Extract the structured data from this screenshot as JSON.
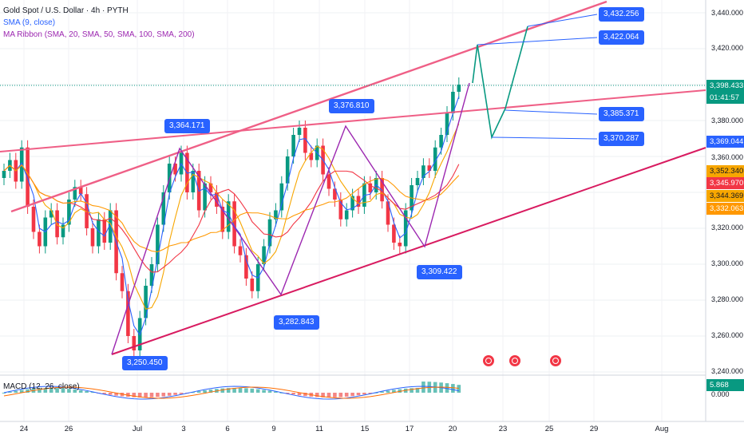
{
  "legend": {
    "title": "Gold Spot / U.S. Dollar · 4h · PYTH",
    "sma": "SMA (9, close)",
    "ribbon": "MA Ribbon (SMA, 20, SMA, 50, SMA, 100, SMA, 200)",
    "macd": "MACD (12, 26, close)"
  },
  "price_axis": {
    "ticks": [
      "3,440.000",
      "3,420.000",
      "3,380.000",
      "3,360.000",
      "3,320.000",
      "3,300.000",
      "3,280.000",
      "3,260.000",
      "3,240.000",
      "0.000"
    ],
    "current_price": "3,398.433",
    "countdown": "01:41:57",
    "labels": [
      {
        "text": "3,369.044",
        "color": "#2962ff"
      },
      {
        "text": "3,352.340",
        "color": "#f7a600"
      },
      {
        "text": "3,345.970",
        "color": "#f23645"
      },
      {
        "text": "3,344.369",
        "color": "#f7a600"
      },
      {
        "text": "3,332.063",
        "color": "#ff9800"
      },
      {
        "text": "5.868",
        "color": "#089981"
      }
    ]
  },
  "annotations": [
    "3,432.256",
    "3,422.064",
    "3,385.371",
    "3,370.287",
    "3,376.810",
    "3,364.171",
    "3,309.422",
    "3,282.843",
    "3,250.450"
  ],
  "time_axis": [
    "24",
    "26",
    "Jul",
    "3",
    "6",
    "9",
    "11",
    "15",
    "17",
    "20",
    "23",
    "25",
    "29",
    "Aug"
  ],
  "chart_data": {
    "type": "candlestick",
    "symbol": "Gold Spot / U.S. Dollar",
    "interval": "4h",
    "y_range": [
      3236,
      3450
    ],
    "last_price": 3398.433,
    "swing_points": [
      {
        "date": "Jun 30",
        "price": 3250.45
      },
      {
        "date": "Jul 3",
        "price": 3364.171
      },
      {
        "date": "Jul 9",
        "price": 3282.843
      },
      {
        "date": "Jul 14",
        "price": 3376.81
      },
      {
        "date": "Jul 17",
        "price": 3309.422
      }
    ],
    "projection_levels": [
      3432.256,
      3422.064,
      3385.371,
      3370.287
    ],
    "indicator_values": {
      "sma9": 3369.044,
      "ma20": 3352.34,
      "ma50": 3345.97,
      "ma100": 3344.369,
      "ma200": 3332.063,
      "macd": 5.868
    }
  }
}
